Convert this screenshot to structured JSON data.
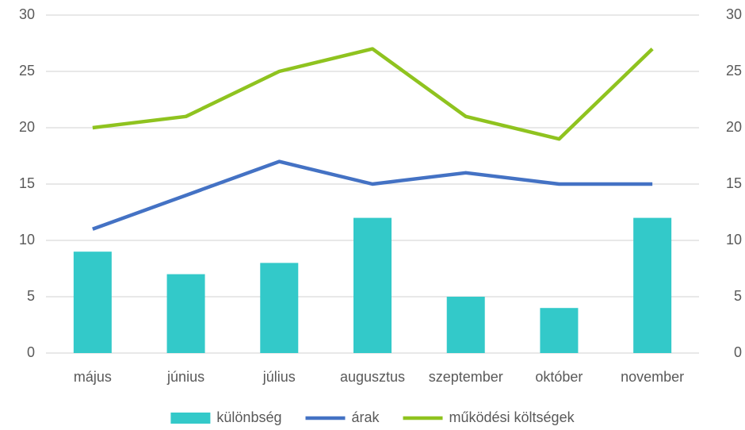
{
  "chart_data": {
    "type": "bar",
    "categories": [
      "május",
      "június",
      "július",
      "augusztus",
      "szeptember",
      "október",
      "november"
    ],
    "series": [
      {
        "name": "különbség",
        "type": "bar",
        "color": "#33c9c9",
        "values": [
          9,
          7,
          8,
          12,
          5,
          4,
          12
        ]
      },
      {
        "name": "árak",
        "type": "line",
        "color": "#4472c4",
        "values": [
          11,
          14,
          17,
          15,
          16,
          15,
          15
        ]
      },
      {
        "name": "működési költségek",
        "type": "line",
        "color": "#8fc31f",
        "values": [
          20,
          21,
          25,
          27,
          21,
          19,
          27
        ]
      }
    ],
    "ylim": [
      0,
      30
    ],
    "yticks": [
      0,
      5,
      10,
      15,
      20,
      25,
      30
    ],
    "y2lim": [
      0,
      30
    ],
    "y2ticks": [
      0,
      5,
      10,
      15,
      20,
      25,
      30
    ],
    "grid": true,
    "legend": "bottom"
  }
}
